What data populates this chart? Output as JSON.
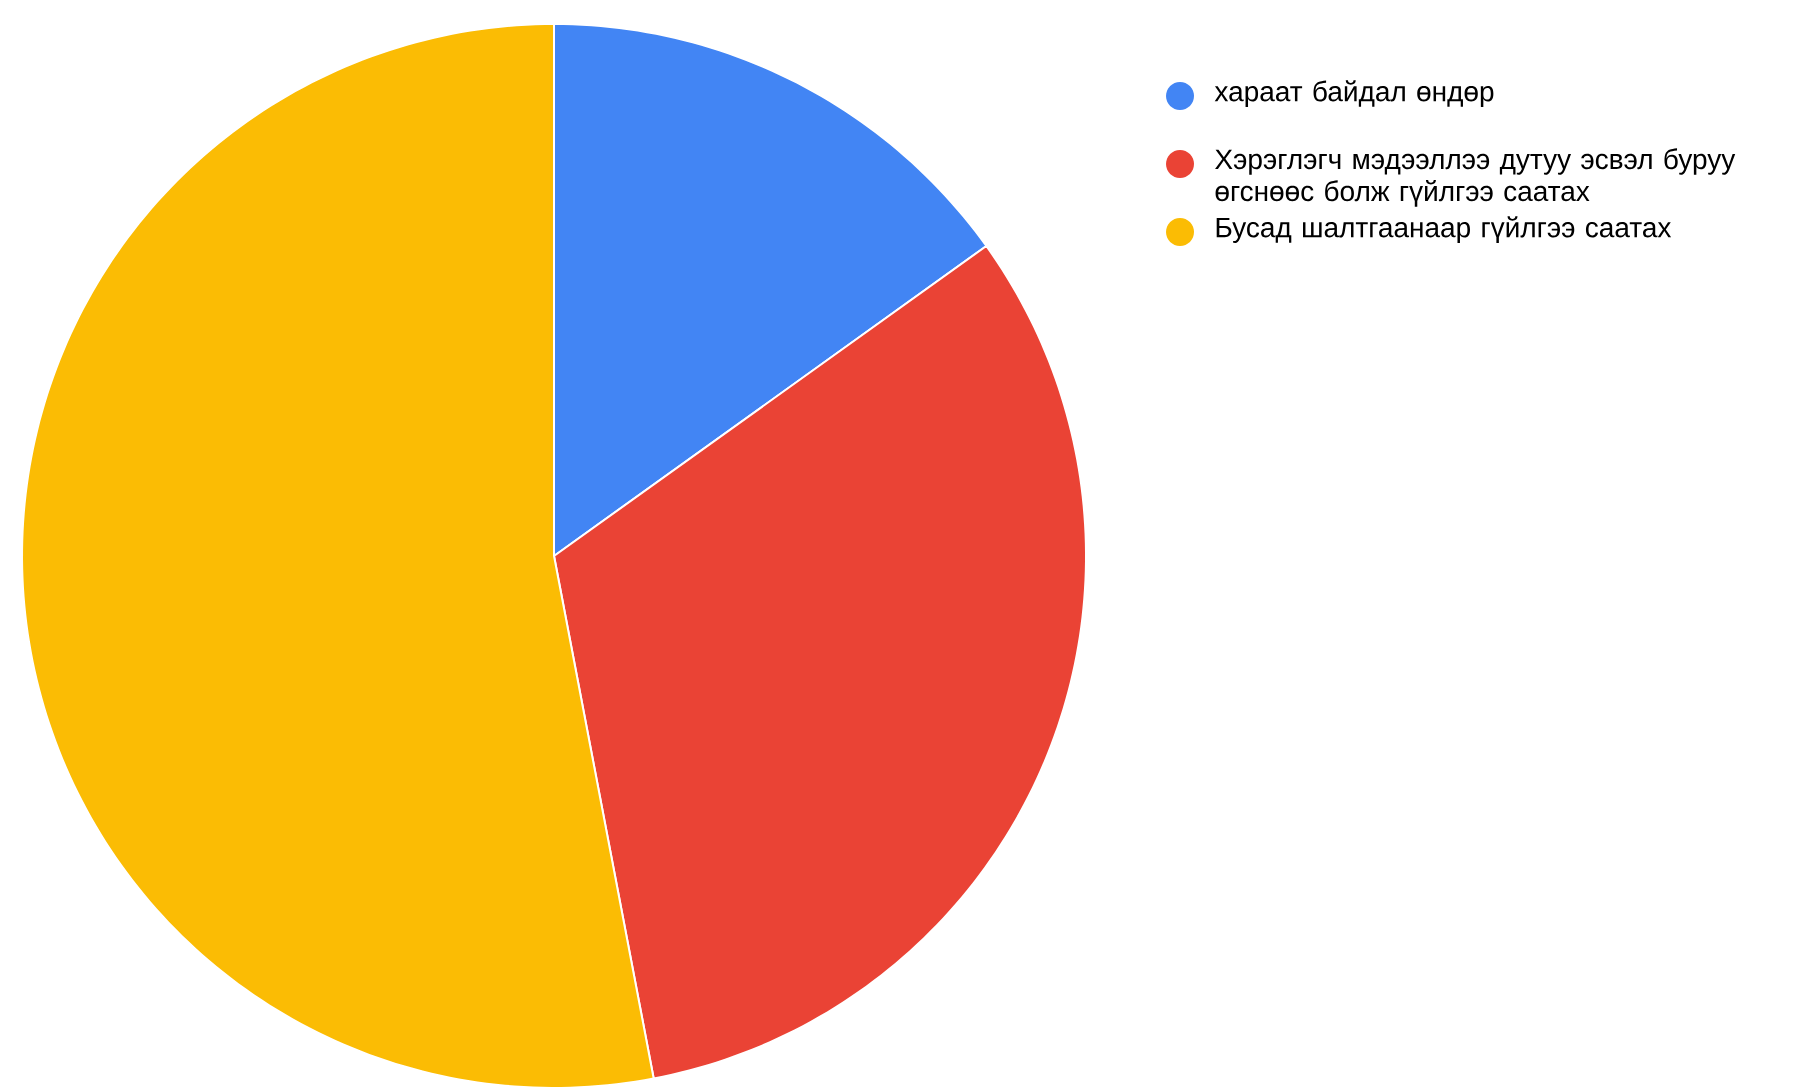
{
  "chart_data": {
    "type": "pie",
    "categories": [
      "хараат байдал өндөр",
      "Хэрэглэгч мэдээллээ дутуу эсвэл буруу өгснөөс болж гүйлгээ саатах",
      "Бусад шалтгаанаар гүйлгээ саатах"
    ],
    "values": [
      15.1,
      31.9,
      53.0
    ],
    "colors": [
      "#4285f4",
      "#ea4335",
      "#fbbc04"
    ],
    "legend": "top right"
  }
}
